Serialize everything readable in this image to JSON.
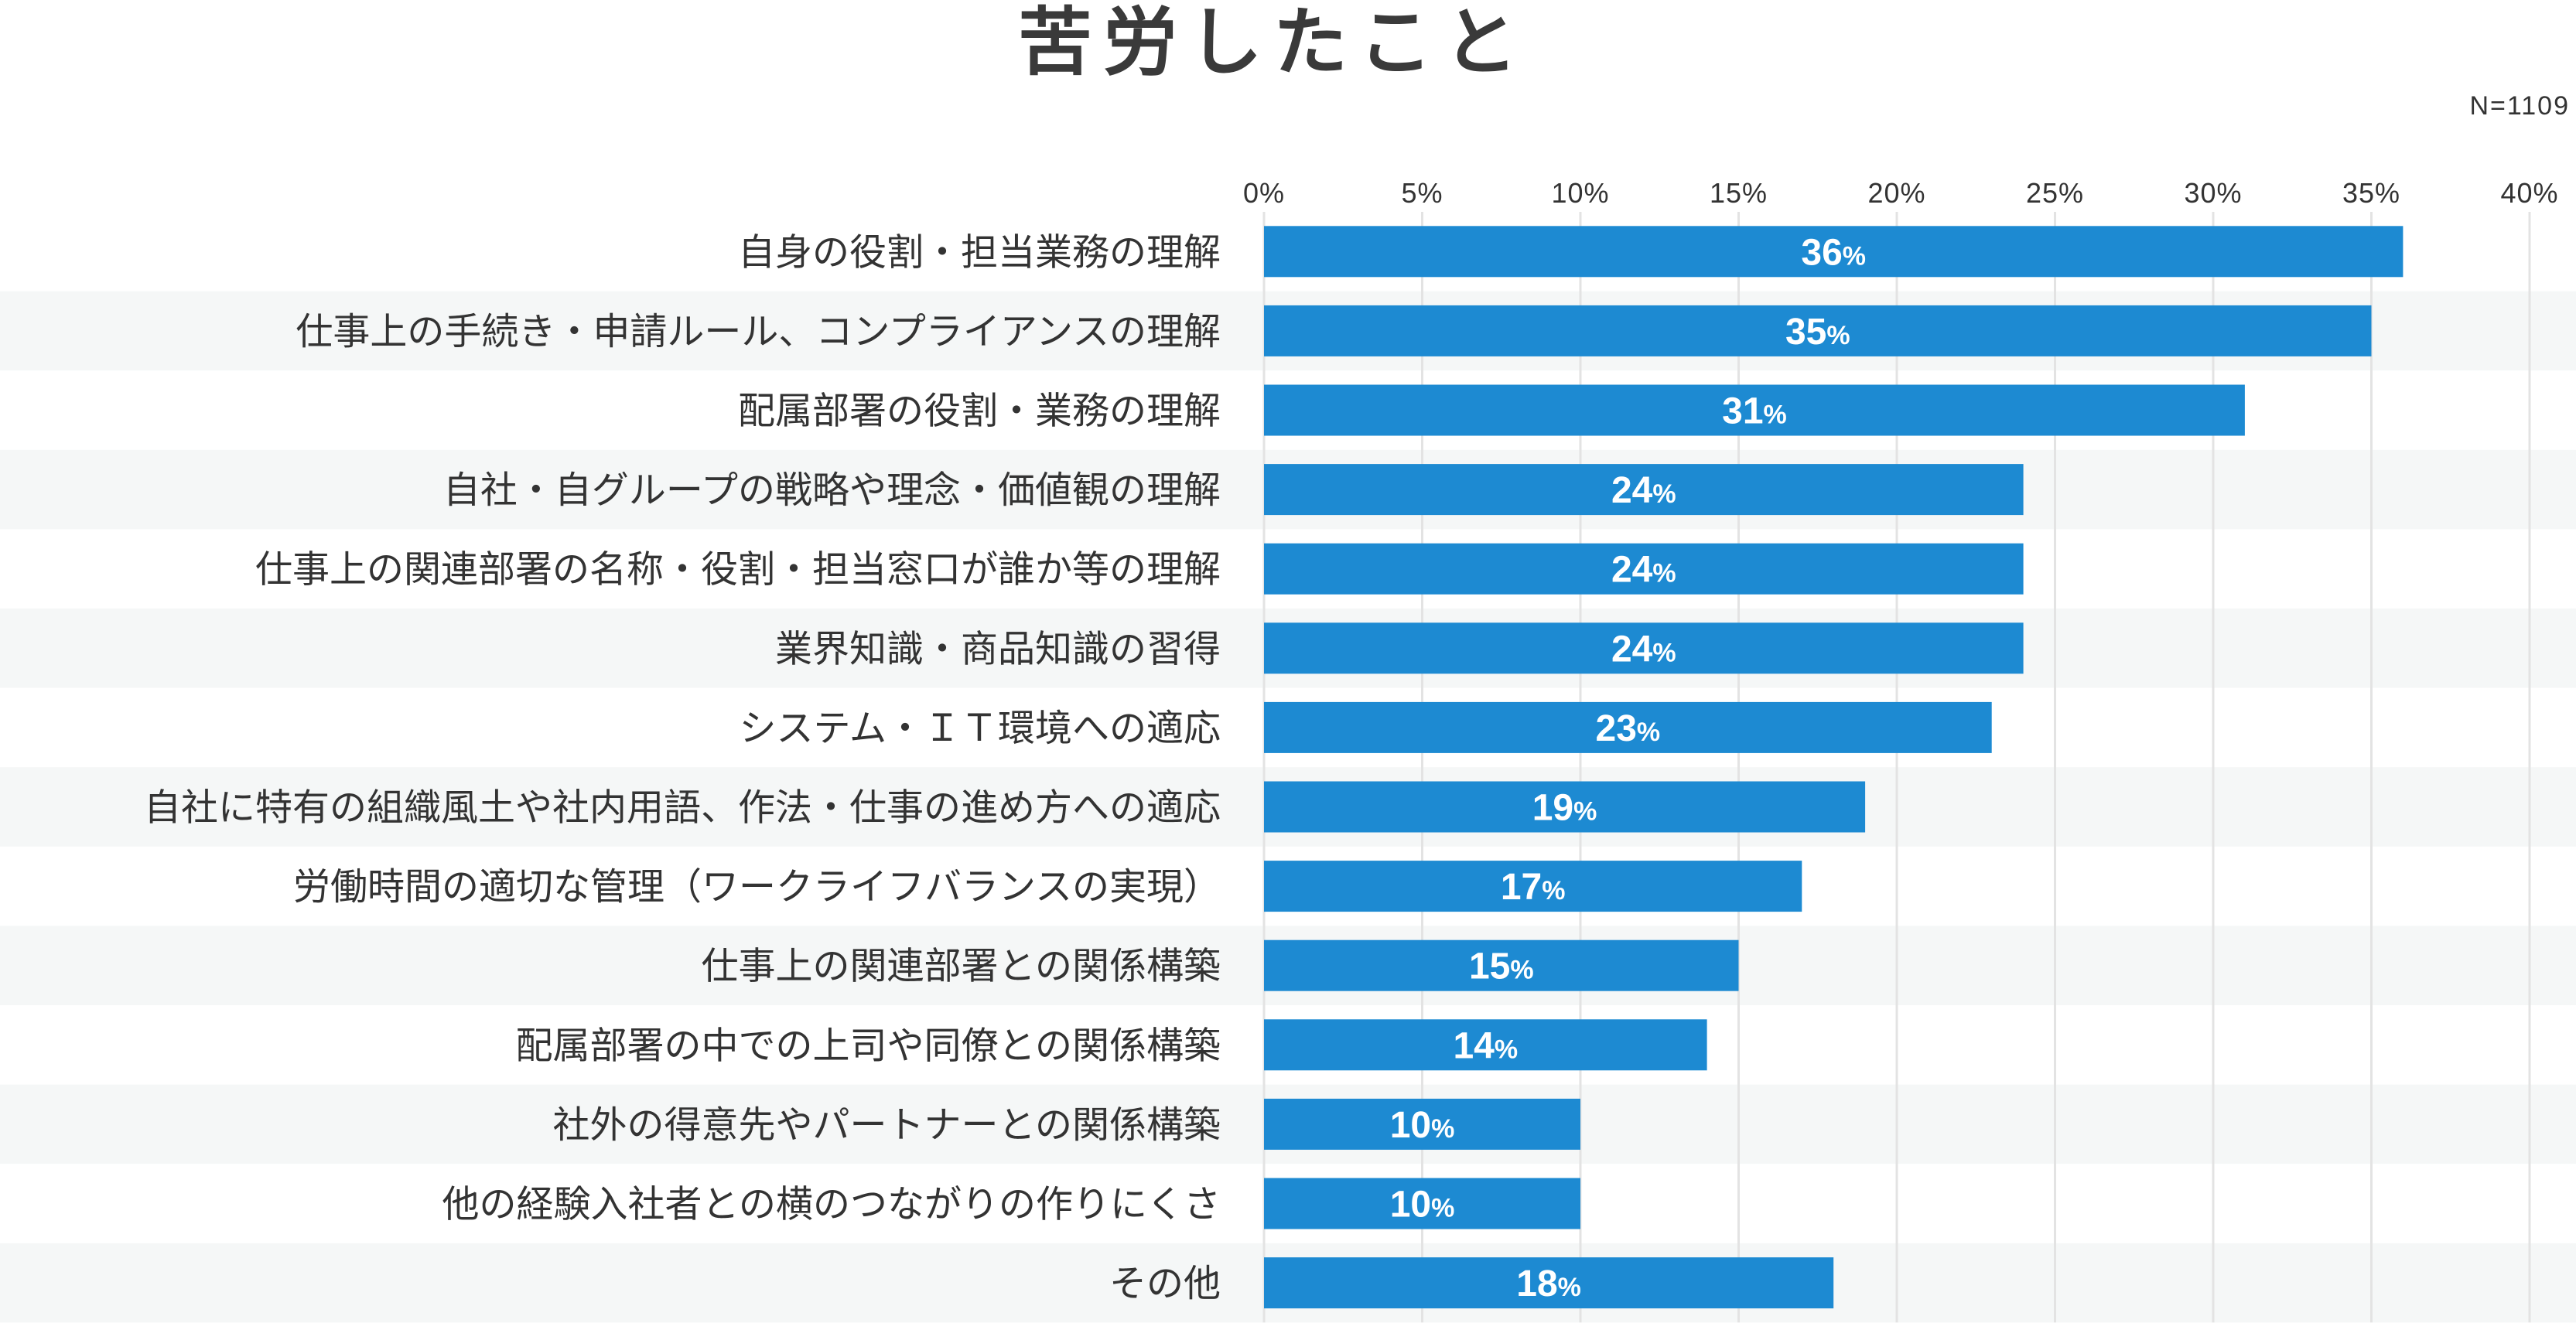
{
  "chart_data": {
    "type": "bar",
    "orientation": "horizontal",
    "title": "苦労したこと",
    "sample_note": "N=1109",
    "xlim": [
      0,
      40
    ],
    "xticks": [
      0,
      5,
      10,
      15,
      20,
      25,
      30,
      35,
      40
    ],
    "tick_suffix": "%",
    "value_suffix": "%",
    "categories": [
      "自身の役割・担当業務の理解",
      "仕事上の手続き・申請ルール、コンプライアンスの理解",
      "配属部署の役割・業務の理解",
      "自社・自グループの戦略や理念・価値観の理解",
      "仕事上の関連部署の名称・役割・担当窓口が誰か等の理解",
      "業界知識・商品知識の習得",
      "システム・ＩＴ環境への適応",
      "自社に特有の組織風土や社内用語、作法・仕事の進め方への適応",
      "労働時間の適切な管理（ワークライフバランスの実現）",
      "仕事上の関連部署との関係構築",
      "配属部署の中での上司や同僚との関係構築",
      "社外の得意先やパートナーとの関係構築",
      "他の経験入社者との横のつながりの作りにくさ",
      "その他"
    ],
    "values": [
      36,
      35,
      31,
      24,
      24,
      24,
      23,
      19,
      17,
      15,
      14,
      10,
      10,
      18
    ],
    "colors": {
      "bar": "#1d8ad2",
      "row_stripe": "#f5f7f7",
      "grid": "#e3e3e3",
      "label_text": "#ffffff"
    }
  }
}
